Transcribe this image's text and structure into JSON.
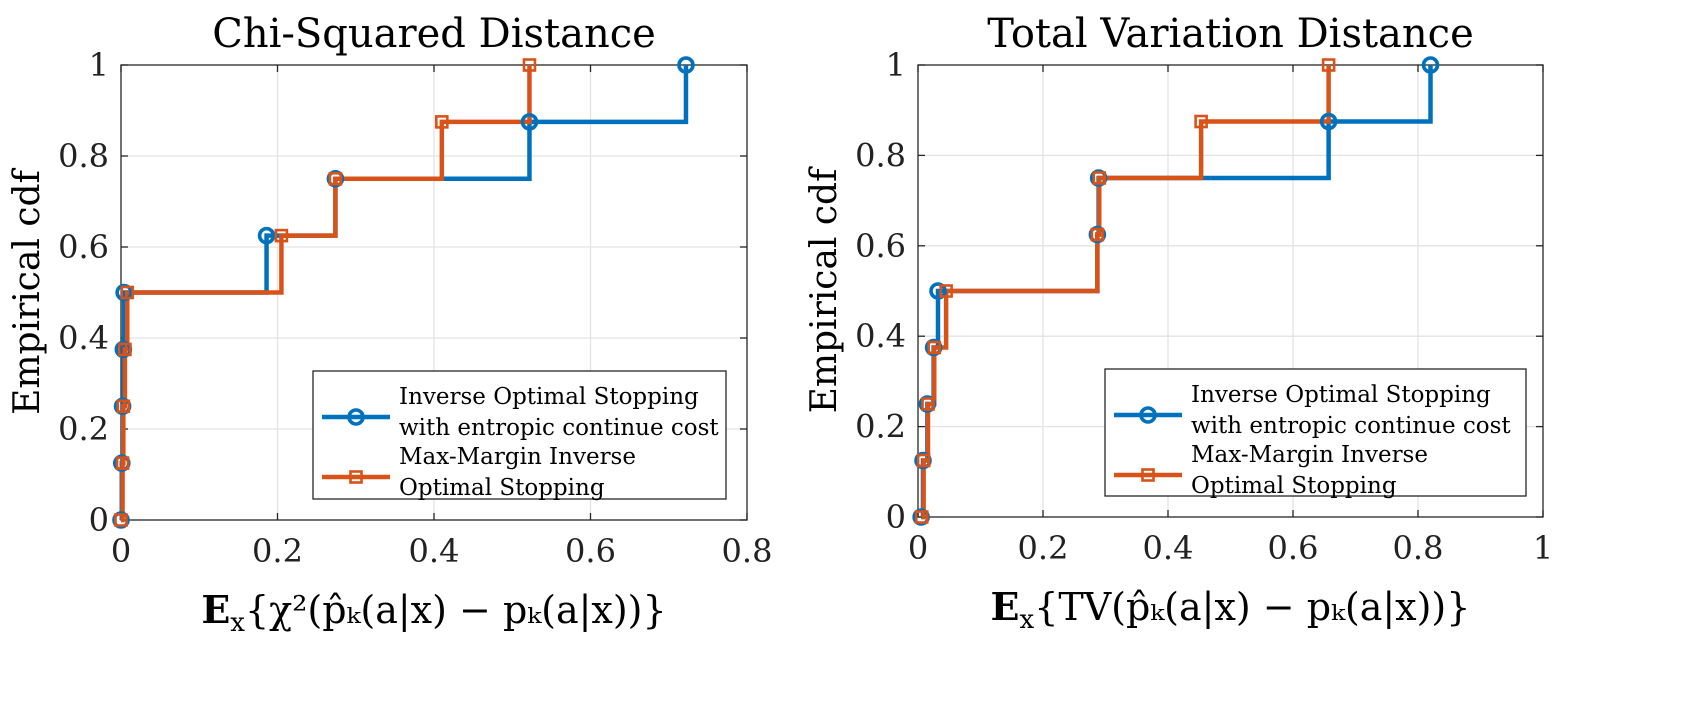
{
  "colors": {
    "series1": "#0072BD",
    "series2": "#D95319"
  },
  "chart_data": [
    {
      "type": "line",
      "step": "post",
      "title": "Chi-Squared Distance",
      "xlabel": "E_x{χ²(p̂_k(a|x) − p_k(a|x))}",
      "xlabel_parts": {
        "bold": "E",
        "sub": "x",
        "rest": "{χ²(p̂ₖ(a|x) − pₖ(a|x))}"
      },
      "ylabel": "Empirical cdf",
      "xlim": [
        0,
        0.8
      ],
      "ylim": [
        0,
        1
      ],
      "xticks": [
        0,
        0.2,
        0.4,
        0.6,
        0.8
      ],
      "xtick_labels": [
        "0",
        "0.2",
        "0.4",
        "0.6",
        "0.8"
      ],
      "yticks": [
        0,
        0.2,
        0.4,
        0.6,
        0.8,
        1
      ],
      "ytick_labels": [
        "0",
        "0.2",
        "0.4",
        "0.6",
        "0.8",
        "1"
      ],
      "grid": true,
      "legend_position": "bottom-right",
      "series": [
        {
          "name": "Inverse Optimal Stopping with entropic continue cost",
          "legend_lines": [
            "Inverse Optimal Stopping",
            "with entropic continue cost"
          ],
          "marker": "circle",
          "x": [
            0,
            0.001,
            0.002,
            0.003,
            0.004,
            0.186,
            0.274,
            0.522,
            0.722
          ],
          "y": [
            0,
            0.125,
            0.25,
            0.375,
            0.5,
            0.625,
            0.75,
            0.875,
            1.0
          ]
        },
        {
          "name": "Max-Margin Inverse Optimal Stopping",
          "legend_lines": [
            "Max-Margin Inverse",
            "Optimal Stopping"
          ],
          "marker": "square",
          "x": [
            0,
            0.002,
            0.003,
            0.005,
            0.008,
            0.205,
            0.274,
            0.41,
            0.522
          ],
          "y": [
            0,
            0.125,
            0.25,
            0.375,
            0.5,
            0.625,
            0.75,
            0.875,
            1.0
          ]
        }
      ]
    },
    {
      "type": "line",
      "step": "post",
      "title": "Total Variation Distance",
      "xlabel": "E_x{TV(p̂_k(a|x) − p_k(a|x))}",
      "xlabel_parts": {
        "bold": "E",
        "sub": "x",
        "rest": "{TV(p̂ₖ(a|x) − pₖ(a|x))}"
      },
      "ylabel": "Empirical cdf",
      "xlim": [
        0,
        1
      ],
      "ylim": [
        0,
        1
      ],
      "xticks": [
        0,
        0.2,
        0.4,
        0.6,
        0.8,
        1
      ],
      "xtick_labels": [
        "0",
        "0.2",
        "0.4",
        "0.6",
        "0.8",
        "1"
      ],
      "yticks": [
        0,
        0.2,
        0.4,
        0.6,
        0.8,
        1
      ],
      "ytick_labels": [
        "0",
        "0.2",
        "0.4",
        "0.6",
        "0.8",
        "1"
      ],
      "grid": true,
      "legend_position": "bottom-right",
      "series": [
        {
          "name": "Inverse Optimal Stopping with entropic continue cost",
          "legend_lines": [
            "Inverse Optimal Stopping",
            " with entropic continue cost"
          ],
          "marker": "circle",
          "x": [
            0.005,
            0.008,
            0.015,
            0.025,
            0.032,
            0.287,
            0.289,
            0.657,
            0.82
          ],
          "y": [
            0,
            0.125,
            0.25,
            0.375,
            0.5,
            0.625,
            0.75,
            0.875,
            1.0
          ]
        },
        {
          "name": "Max-Margin Inverse Optimal Stopping",
          "legend_lines": [
            "Max-Margin Inverse",
            "Optimal Stopping"
          ],
          "marker": "square",
          "x": [
            0.006,
            0.009,
            0.016,
            0.026,
            0.045,
            0.287,
            0.29,
            0.453,
            0.657
          ],
          "y": [
            0,
            0.125,
            0.25,
            0.375,
            0.5,
            0.625,
            0.75,
            0.875,
            1.0
          ]
        }
      ]
    }
  ]
}
